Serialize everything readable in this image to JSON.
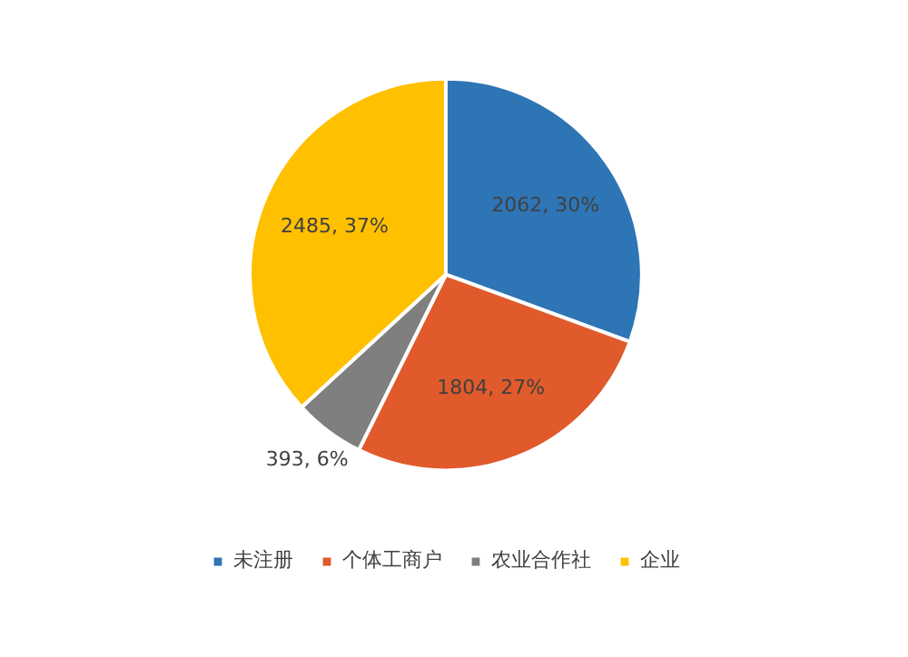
{
  "chart_data": {
    "type": "pie",
    "categories": [
      "未注册",
      "个体工商户",
      "农业合作社",
      "企业"
    ],
    "values": [
      2062,
      1804,
      393,
      2485
    ],
    "colors": [
      "#2e75b6",
      "#e05a2b",
      "#7f7f7f",
      "#ffc000"
    ],
    "value_labels": [
      "2062, 30%",
      "1804, 27%",
      "393, 6%",
      "2485, 37%"
    ],
    "legend": "bottom"
  }
}
